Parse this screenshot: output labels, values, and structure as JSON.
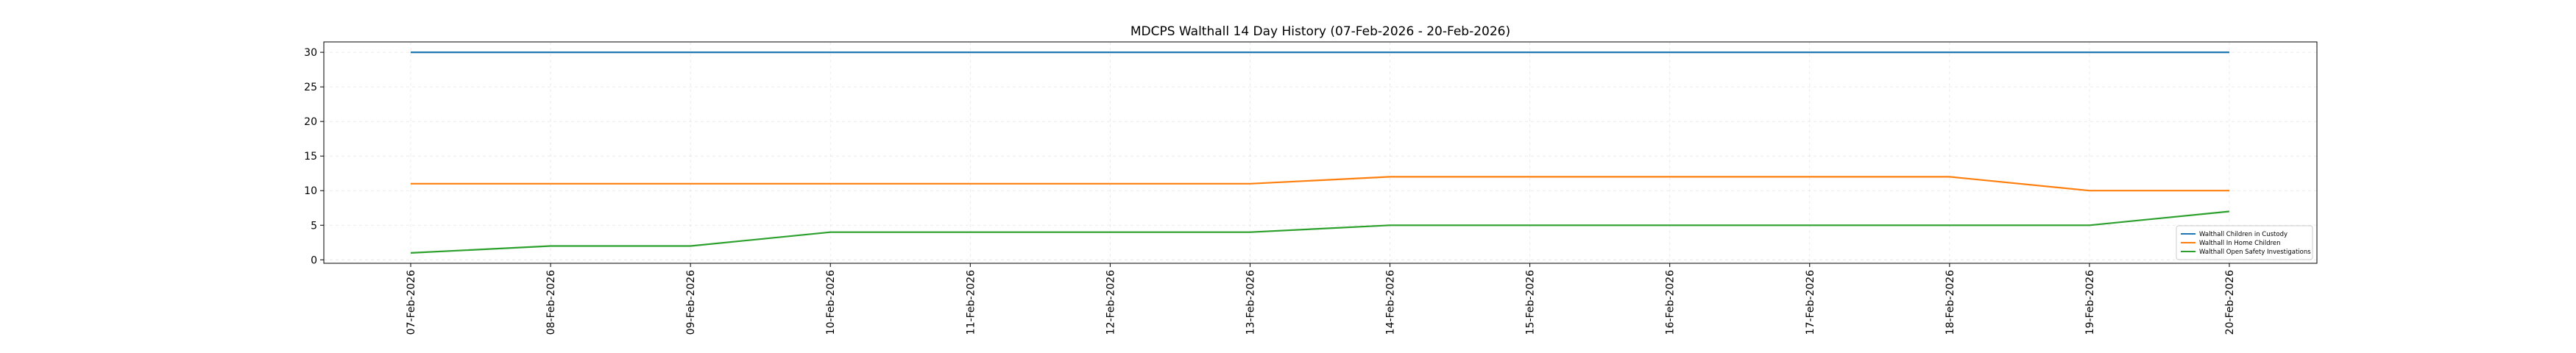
{
  "chart_data": {
    "type": "line",
    "title": "MDCPS Walthall 14 Day History (07-Feb-2026 - 20-Feb-2026)",
    "xlabel": "",
    "ylabel": "",
    "categories": [
      "07-Feb-2026",
      "08-Feb-2026",
      "09-Feb-2026",
      "10-Feb-2026",
      "11-Feb-2026",
      "12-Feb-2026",
      "13-Feb-2026",
      "14-Feb-2026",
      "15-Feb-2026",
      "16-Feb-2026",
      "17-Feb-2026",
      "18-Feb-2026",
      "19-Feb-2026",
      "20-Feb-2026"
    ],
    "ylim": [
      -0.5,
      31.5
    ],
    "yticks": [
      0,
      5,
      10,
      15,
      20,
      25,
      30
    ],
    "grid": true,
    "legend_position": "bottom-right",
    "series": [
      {
        "name": "Walthall Children in Custody",
        "color": "#1f77b4",
        "values": [
          30,
          30,
          30,
          30,
          30,
          30,
          30,
          30,
          30,
          30,
          30,
          30,
          30,
          30
        ]
      },
      {
        "name": "Walthall In Home Children",
        "color": "#ff7f0e",
        "values": [
          11,
          11,
          11,
          11,
          11,
          11,
          11,
          12,
          12,
          12,
          12,
          12,
          10,
          10
        ]
      },
      {
        "name": "Walthall Open Safety Investigations",
        "color": "#2ca02c",
        "values": [
          1,
          2,
          2,
          4,
          4,
          4,
          4,
          5,
          5,
          5,
          5,
          5,
          5,
          7
        ]
      }
    ]
  }
}
